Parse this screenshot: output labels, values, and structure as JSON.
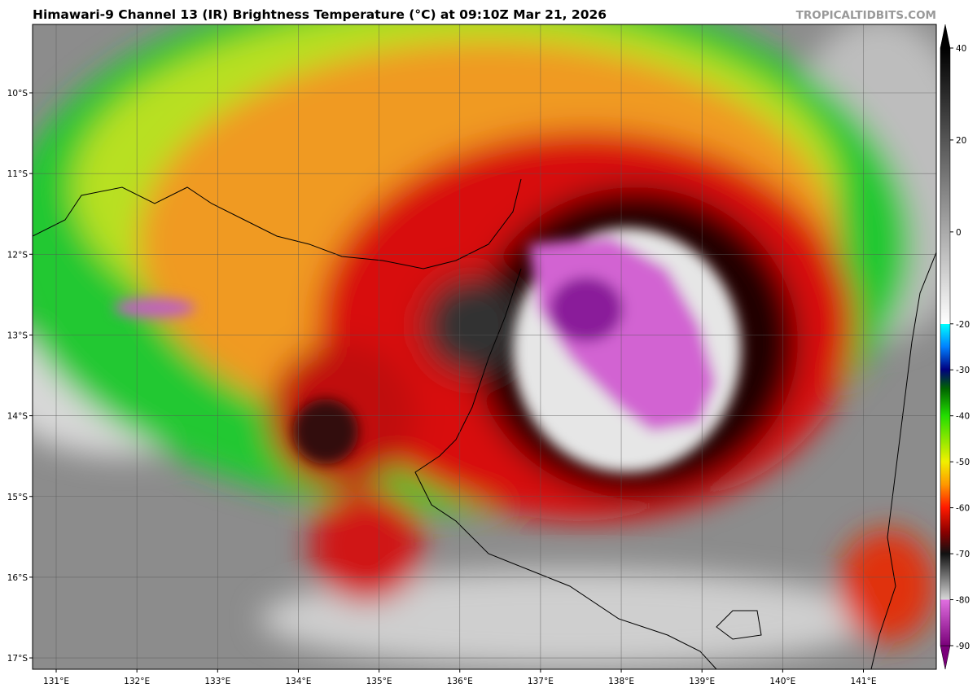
{
  "header": {
    "title": "Himawari-9 Channel 13 (IR) Brightness Temperature (°C) at 09:10Z Mar 21, 2026",
    "credit": "TROPICALTIDBITS.COM"
  },
  "map": {
    "lat_labels": [
      "10°S",
      "11°S",
      "12°S",
      "13°S",
      "14°S",
      "15°S",
      "16°S",
      "17°S"
    ],
    "lon_labels": [
      "131°E",
      "132°E",
      "133°E",
      "134°E",
      "135°E",
      "136°E",
      "137°E",
      "138°E",
      "139°E",
      "140°E",
      "141°E"
    ]
  },
  "colorbar": {
    "lim": [
      -90,
      40
    ],
    "ticks": [
      40,
      20,
      0,
      -20,
      -30,
      -40,
      -50,
      -60,
      -70,
      -80,
      -90
    ]
  }
}
